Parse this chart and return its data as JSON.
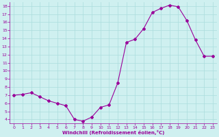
{
  "x": [
    0,
    1,
    2,
    3,
    4,
    5,
    6,
    7,
    8,
    9,
    10,
    11,
    12,
    13,
    14,
    15,
    16,
    17,
    18,
    19,
    20,
    21,
    22,
    23
  ],
  "y": [
    7.0,
    7.1,
    7.3,
    6.8,
    6.3,
    6.0,
    5.7,
    4.0,
    3.8,
    4.3,
    5.5,
    5.8,
    8.5,
    13.5,
    13.9,
    15.2,
    17.2,
    17.7,
    18.1,
    17.9,
    16.2,
    13.8,
    11.8,
    11.8
  ],
  "line_color": "#990099",
  "marker": "D",
  "marker_size": 2.0,
  "bg_color": "#cff0f0",
  "grid_color": "#aadddd",
  "xlabel": "Windchill (Refroidissement éolien,°C)",
  "xlabel_color": "#990099",
  "tick_color": "#990099",
  "ylim": [
    3.5,
    18.5
  ],
  "xlim": [
    -0.5,
    23.5
  ],
  "yticks": [
    4,
    5,
    6,
    7,
    8,
    9,
    10,
    11,
    12,
    13,
    14,
    15,
    16,
    17,
    18
  ],
  "xticks": [
    0,
    1,
    2,
    3,
    4,
    5,
    6,
    7,
    8,
    9,
    10,
    11,
    12,
    13,
    14,
    15,
    16,
    17,
    18,
    19,
    20,
    21,
    22,
    23
  ]
}
